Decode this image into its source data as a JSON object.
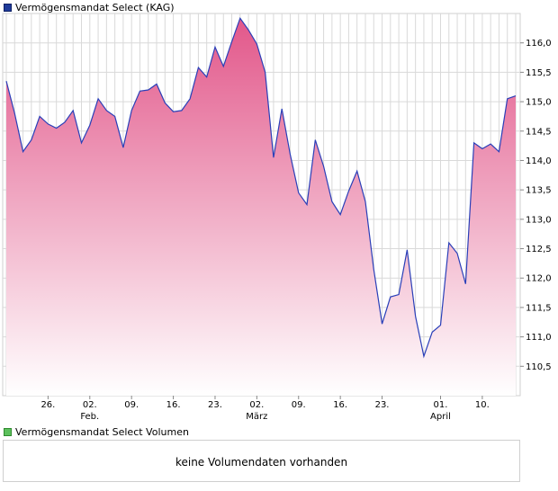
{
  "legend": {
    "price_label": "Vermögensmandat Select (KAG)",
    "volume_label": "Vermögensmandat Select Volumen"
  },
  "volume": {
    "message": "keine Volumendaten vorhanden"
  },
  "colors": {
    "line": "#2a3fb8",
    "fill_top": "#e2578a",
    "fill_bottom": "#ffffff",
    "grid": "#d9d9d9"
  },
  "chart_data": {
    "type": "area",
    "series": [
      {
        "name": "Vermögensmandat Select (KAG)",
        "values": [
          115.35,
          114.8,
          114.15,
          114.35,
          114.75,
          114.62,
          114.55,
          114.65,
          114.85,
          114.3,
          114.6,
          115.05,
          114.85,
          114.75,
          114.22,
          114.85,
          115.18,
          115.2,
          115.3,
          114.98,
          114.83,
          114.85,
          115.05,
          115.58,
          115.42,
          115.93,
          115.6,
          116.02,
          116.42,
          116.22,
          115.98,
          115.5,
          114.05,
          114.88,
          114.1,
          113.45,
          113.25,
          114.35,
          113.9,
          113.3,
          113.08,
          113.48,
          113.82,
          113.3,
          112.15,
          111.22,
          111.68,
          111.72,
          112.48,
          111.35,
          110.67,
          111.08,
          111.2,
          112.6,
          112.42,
          111.9,
          114.3,
          114.2,
          114.28,
          114.15,
          115.05,
          115.1
        ]
      }
    ],
    "x_ticks": [
      {
        "index": 5,
        "label": "26.",
        "month": ""
      },
      {
        "index": 10,
        "label": "02.",
        "month": "Feb."
      },
      {
        "index": 15,
        "label": "09.",
        "month": ""
      },
      {
        "index": 20,
        "label": "16.",
        "month": ""
      },
      {
        "index": 25,
        "label": "23.",
        "month": ""
      },
      {
        "index": 30,
        "label": "02.",
        "month": "März"
      },
      {
        "index": 35,
        "label": "09.",
        "month": ""
      },
      {
        "index": 40,
        "label": "16.",
        "month": ""
      },
      {
        "index": 45,
        "label": "23.",
        "month": ""
      },
      {
        "index": 52,
        "label": "01.",
        "month": "April"
      },
      {
        "index": 57,
        "label": "10.",
        "month": ""
      }
    ],
    "y_ticks": [
      110.5,
      111.0,
      111.5,
      112.0,
      112.5,
      113.0,
      113.5,
      114.0,
      114.5,
      115.0,
      115.5,
      116.0
    ],
    "y_tick_labels": [
      "110,5",
      "111,0",
      "111,5",
      "112,0",
      "112,5",
      "113,0",
      "113,5",
      "114,0",
      "114,5",
      "115,0",
      "115,5",
      "116,0"
    ],
    "ylim": [
      110.0,
      116.5
    ],
    "grid": true,
    "y_axis_side": "right"
  }
}
